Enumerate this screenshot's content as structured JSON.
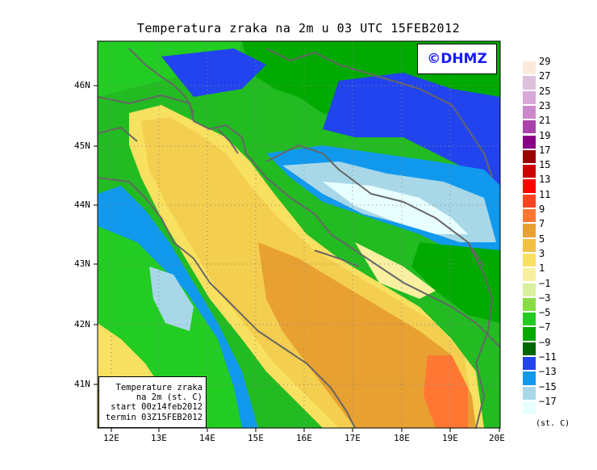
{
  "title": "Temperatura zraka na 2m u 03 UTC 15FEB2012",
  "logo": "©DHMZ",
  "infobox": {
    "line1": "Temperature zraka",
    "line2": "na 2m (st. C)",
    "line3": "start 00z14feb2012",
    "line4": "termin 03Z15FEB2012"
  },
  "lat_labels": [
    "46N",
    "45N",
    "44N",
    "43N",
    "42N",
    "41N"
  ],
  "lon_labels": [
    "12E",
    "13E",
    "14E",
    "15E",
    "16E",
    "17E",
    "18E",
    "19E",
    "20E"
  ],
  "legend": {
    "labels": [
      "29",
      "27",
      "25",
      "23",
      "21",
      "19",
      "17",
      "15",
      "13",
      "11",
      "9",
      "7",
      "5",
      "3",
      "1",
      "−1",
      "−3",
      "−5",
      "−7",
      "−9",
      "−11",
      "−13",
      "−15",
      "−17"
    ],
    "colors": [
      "#fbeadc",
      "#dcc0dc",
      "#d8a8d8",
      "#cc88cc",
      "#aa44aa",
      "#880088",
      "#990000",
      "#cc0000",
      "#ff0000",
      "#ff4422",
      "#ff7733",
      "#e8a030",
      "#f0c040",
      "#f8e060",
      "#f8f0a0",
      "#d8f0a0",
      "#88dd44",
      "#22cc22",
      "#00aa00",
      "#006600",
      "#2244ee",
      "#1199ee",
      "#a8d8e8",
      "#e8ffff"
    ],
    "unit": "(st. C)"
  }
}
